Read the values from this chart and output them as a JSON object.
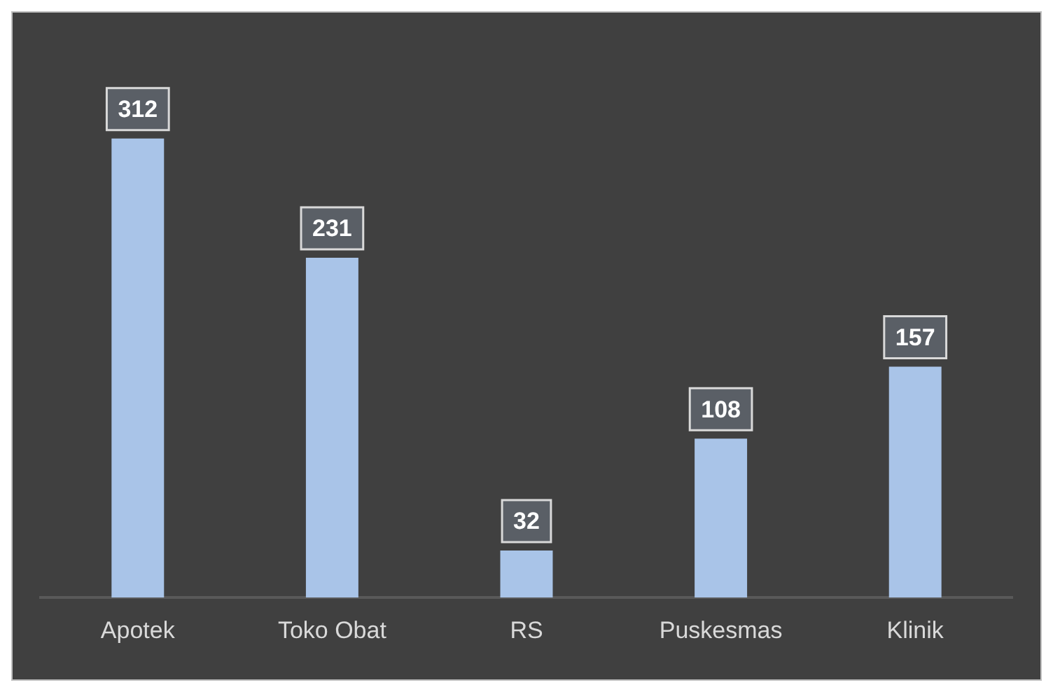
{
  "chart_data": {
    "type": "bar",
    "categories": [
      "Apotek",
      "Toko Obat",
      "RS",
      "Puskesmas",
      "Klinik"
    ],
    "values": [
      312,
      231,
      32,
      108,
      157
    ],
    "color": "#a9c4e8",
    "data_labels": true,
    "grid": false,
    "legend": false
  }
}
